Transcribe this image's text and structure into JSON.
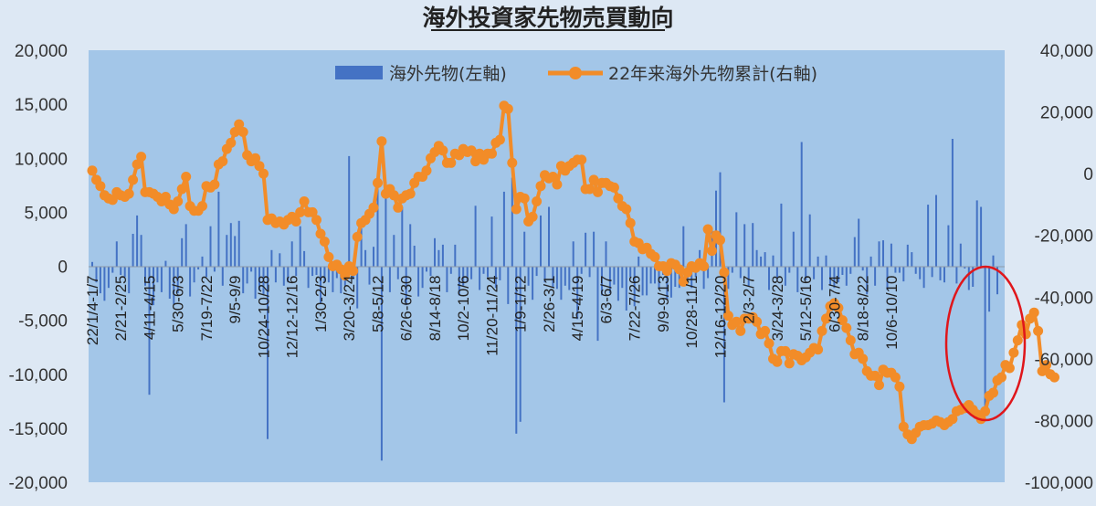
{
  "chart_data": {
    "type": "bar+line",
    "title": "海外投資家先物売買動向",
    "legend_position": "top-center",
    "legend": [
      "海外先物(左軸)",
      "22年来海外先物累計(右軸)"
    ],
    "grid": false,
    "y_left": {
      "min": -20000,
      "max": 20000,
      "step": 5000,
      "tick_labels": [
        "20,000",
        "15,000",
        "10,000",
        "5,000",
        "0",
        "-5,000",
        "-10,000",
        "-15,000",
        "-20,000"
      ]
    },
    "y_right": {
      "min": -100000,
      "max": 40000,
      "step": 20000,
      "tick_labels": [
        "40,000",
        "20,000",
        "0",
        "-20,000",
        "-40,000",
        "-60,000",
        "-80,000",
        "-100,000"
      ]
    },
    "x_tick_labels": [
      "22/1/4-1/7",
      "2/21-2/25",
      "4/11-4/15",
      "5/30-6/3",
      "7/19-7/22",
      "9/5-9/9",
      "10/24-10/28",
      "12/12-12/16",
      "1/30-2/3",
      "3/20-3/24",
      "5/8-5/12",
      "6/26-6/30",
      "8/14-8/18",
      "10/2-10/6",
      "11/20-11/24",
      "1/9-1/12",
      "2/26-3/1",
      "4/15-4/19",
      "6/3-6/7",
      "7/22-7/26",
      "9/9-9/13",
      "10/28-11/1",
      "12/16-12/20",
      "2/3-2/7",
      "3/24-3/28",
      "5/12-5/16",
      "6/30-7/4",
      "8/18-8/22",
      "10/6-10/10"
    ],
    "x_tick_every": 7,
    "series": [
      {
        "name": "海外先物(左軸)",
        "axis": "left",
        "type": "bar",
        "color": "#4472c4",
        "values": [
          400,
          -1500,
          -2500,
          -3200,
          -2000,
          -600,
          2300,
          -800,
          -1000,
          -2500,
          3000,
          4700,
          2900,
          -1800,
          -11900,
          -3600,
          -1500,
          -2400,
          500,
          -3000,
          -3500,
          -2500,
          2600,
          3900,
          -2800,
          -1500,
          -300,
          900,
          -1000,
          3700,
          -500,
          6900,
          -1800,
          2900,
          4000,
          2800,
          4200,
          -2500,
          -1600,
          -500,
          -3000,
          -2200,
          -2600,
          -16000,
          1500,
          -1500,
          1200,
          -1800,
          -1500,
          2300,
          -900,
          3700,
          1400,
          -2000,
          -900,
          -800,
          -3500,
          -1400,
          -1500,
          -2400,
          -1100,
          -2500,
          -1800,
          10200,
          -1200,
          -3900,
          3500,
          1500,
          -1700,
          1800,
          8500,
          -18000,
          7800,
          -2400,
          2900,
          -1200,
          5500,
          -3600,
          3900,
          1900,
          -2800,
          -2000,
          -500,
          -900,
          2600,
          1500,
          2000,
          -2400,
          -700,
          2000,
          -2700,
          -1800,
          -1400,
          -1200,
          5600,
          -2200,
          -700,
          -1000,
          4600,
          -2000,
          -1300,
          6900,
          -3500,
          8200,
          -15500,
          -14400,
          3200,
          -1800,
          -3100,
          -900,
          4700,
          -1500,
          5500,
          -1900,
          -2100,
          -3100,
          -1800,
          -2200,
          2300,
          -4900,
          -700,
          3100,
          -1000,
          3200,
          -6900,
          -2700,
          2300,
          -2500,
          -1700,
          -3200,
          -2000,
          -4100,
          -1000,
          -3700,
          900,
          -2700,
          -2700,
          -1600,
          -1600,
          -2000,
          -800,
          -3100,
          -2900,
          -1900,
          -2000,
          3700,
          -1600,
          -2000,
          -1000,
          1500,
          -2100,
          -1100,
          3500,
          7000,
          8700,
          -12600,
          -2100,
          -600,
          5000,
          -1100,
          3900,
          -1900,
          4000,
          1500,
          900,
          1300,
          -2200,
          1000,
          -1200,
          5800,
          -1800,
          -600,
          3200,
          -2400,
          11500,
          -1300,
          4800,
          -1200,
          900,
          -2200,
          1000,
          -1800,
          -2000,
          -1500,
          -800,
          -1800,
          -700,
          2700,
          4400,
          -400,
          -2600,
          900,
          -1800,
          2300,
          2400,
          -2200,
          2100,
          -600,
          -600,
          -1400,
          2000,
          1300,
          -700,
          -1200,
          -2000,
          5700,
          -1000,
          6600,
          -1300,
          -1500,
          3800,
          11800,
          -1600,
          2100,
          -200,
          -2200,
          -1900,
          6100,
          5500,
          -13000,
          -4200,
          1000,
          -2600
        ]
      },
      {
        "name": "22年来海外先物累計(右軸)",
        "axis": "right",
        "type": "line",
        "color": "#f28c28",
        "values": [
          1000,
          -2000,
          -4000,
          -7000,
          -8000,
          -8500,
          -6000,
          -7000,
          -7500,
          -6500,
          -2000,
          3000,
          5500,
          -6000,
          -6000,
          -6500,
          -7500,
          -9000,
          -7500,
          -10000,
          -11500,
          -9000,
          -5000,
          -1000,
          -10500,
          -12000,
          -12000,
          -10500,
          -4000,
          -4500,
          -3500,
          3000,
          4000,
          8000,
          10000,
          13500,
          16000,
          13500,
          6000,
          4000,
          5000,
          2500,
          0,
          -15000,
          -14500,
          -16000,
          -15500,
          -16500,
          -15000,
          -14000,
          -15500,
          -12500,
          -9000,
          -12500,
          -12500,
          -15000,
          -19500,
          -22000,
          -27000,
          -30000,
          -29500,
          -31000,
          -33000,
          -30000,
          -31500,
          -20500,
          -16000,
          -15000,
          -13000,
          -11000,
          -3000,
          10500,
          -6500,
          -5000,
          -7000,
          -11000,
          -8000,
          -7000,
          -6500,
          -3000,
          -1000,
          -1000,
          1000,
          5000,
          7000,
          9000,
          7500,
          3500,
          3500,
          6500,
          6000,
          8000,
          7000,
          7500,
          4000,
          6500,
          4500,
          6500,
          6500,
          10000,
          11000,
          22000,
          21000,
          3500,
          -11500,
          -7500,
          -8000,
          -15500,
          -14000,
          -9000,
          -4000,
          -500,
          -1500,
          -1000,
          -3500,
          2500,
          1000,
          2500,
          3500,
          4500,
          4500,
          -5000,
          -5000,
          -2000,
          -6000,
          -3000,
          -3000,
          -4000,
          -4500,
          -8000,
          -10500,
          -11500,
          -16000,
          -22000,
          -22500,
          -24500,
          -24000,
          -26000,
          -27000,
          -30000,
          -30000,
          -31500,
          -29000,
          -29500,
          -31000,
          -35000,
          -32000,
          -30000,
          -30500,
          -29000,
          -30000,
          -18000,
          -25000,
          -20000,
          -21500,
          -32000,
          -46000,
          -49000,
          -48000,
          -51000,
          -47000,
          -47000,
          -46500,
          -48000,
          -52000,
          -51000,
          -55000,
          -60000,
          -61000,
          -57500,
          -57500,
          -61500,
          -58500,
          -59000,
          -60500,
          -59500,
          -58000,
          -56500,
          -57000,
          -51000,
          -47000,
          -43000,
          -42000,
          -43500,
          -47500,
          -50000,
          -54000,
          -58500,
          -58000,
          -60000,
          -64000,
          -65500,
          -65500,
          -68500,
          -63500,
          -64500,
          -64500,
          -66000,
          -69000,
          -82000,
          -84500,
          -86000,
          -84000,
          -82000,
          -81500,
          -81500,
          -81000,
          -80000,
          -80500,
          -81500,
          -80500,
          -79500,
          -77000,
          -76500,
          -76000,
          -75000,
          -76500,
          -78000,
          -79500,
          -77000,
          -72000,
          -71000,
          -67000,
          -66000,
          -62000,
          -63000,
          -58000,
          -54000,
          -49000,
          -52000,
          -47000,
          -45000,
          -51000,
          -64000,
          -62000,
          -65000,
          -66000
        ]
      }
    ],
    "annotation": "red ellipse highlighting most recent weeks"
  }
}
